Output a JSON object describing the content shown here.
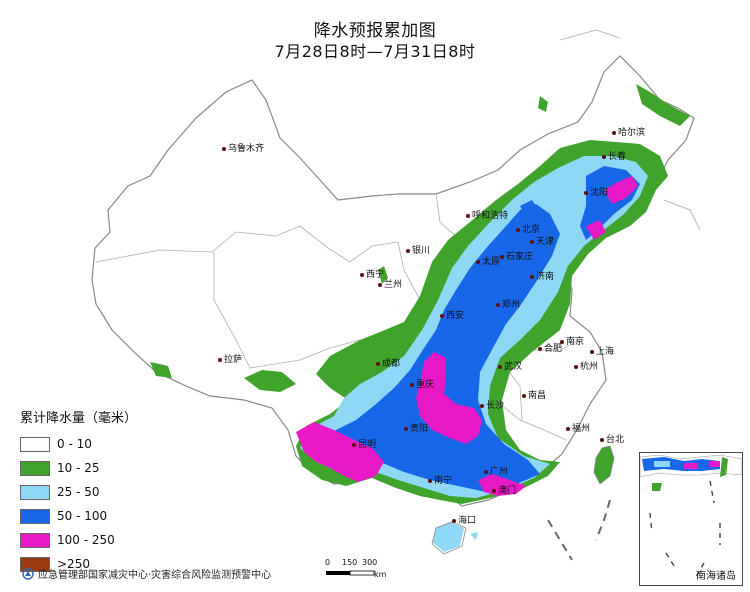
{
  "title": {
    "line1": "降水预报累加图",
    "line2": "7月28日8时—7月31日8时"
  },
  "legend": {
    "title": "累计降水量（毫米）",
    "items": [
      {
        "label": "0 - 10",
        "color": "#ffffff"
      },
      {
        "label": "10 - 25",
        "color": "#3fa32c"
      },
      {
        "label": "25 - 50",
        "color": "#8ed8f5"
      },
      {
        "label": "50 - 100",
        "color": "#1867e8"
      },
      {
        "label": "100 - 250",
        "color": "#e81ac8"
      },
      {
        "label": ">250",
        "color": "#9b3a10"
      }
    ]
  },
  "cities": [
    {
      "name": "乌鲁木齐",
      "id": "urumqi"
    },
    {
      "name": "哈尔滨",
      "id": "harbin"
    },
    {
      "name": "长春",
      "id": "changchun"
    },
    {
      "name": "沈阳",
      "id": "shenyang"
    },
    {
      "name": "呼和浩特",
      "id": "hohhot"
    },
    {
      "name": "北京",
      "id": "beijing"
    },
    {
      "name": "天津",
      "id": "tianjin"
    },
    {
      "name": "太原",
      "id": "taiyuan"
    },
    {
      "name": "石家庄",
      "id": "shijiazhuang"
    },
    {
      "name": "银川",
      "id": "yinchuan"
    },
    {
      "name": "西宁",
      "id": "xining"
    },
    {
      "name": "兰州",
      "id": "lanzhou"
    },
    {
      "name": "济南",
      "id": "jinan"
    },
    {
      "name": "郑州",
      "id": "zhengzhou"
    },
    {
      "name": "西安",
      "id": "xian"
    },
    {
      "name": "南京",
      "id": "nanjing"
    },
    {
      "name": "合肥",
      "id": "hefei"
    },
    {
      "name": "上海",
      "id": "shanghai"
    },
    {
      "name": "杭州",
      "id": "hangzhou"
    },
    {
      "name": "成都",
      "id": "chengdu"
    },
    {
      "name": "拉萨",
      "id": "lhasa"
    },
    {
      "name": "重庆",
      "id": "chongqing"
    },
    {
      "name": "武汉",
      "id": "wuhan"
    },
    {
      "name": "南昌",
      "id": "nanchang"
    },
    {
      "name": "长沙",
      "id": "changsha"
    },
    {
      "name": "贵阳",
      "id": "guiyang"
    },
    {
      "name": "福州",
      "id": "fuzhou"
    },
    {
      "name": "台北",
      "id": "taipei"
    },
    {
      "name": "昆明",
      "id": "kunming"
    },
    {
      "name": "广州",
      "id": "guangzhou"
    },
    {
      "name": "南宁",
      "id": "nanning"
    },
    {
      "name": "澳门",
      "id": "macau"
    },
    {
      "name": "海口",
      "id": "haikou"
    }
  ],
  "footer": {
    "agency": "应急管理部国家减灾中心·灾害综合风险监测预警中心"
  },
  "scale": {
    "ticks": [
      "0",
      "150",
      "300"
    ],
    "unit": "km"
  },
  "inset": {
    "label": "南海诸岛"
  },
  "colors": {
    "border": "#888888",
    "province_line": "#aaaaaa",
    "city_dot": "#5a1010"
  }
}
